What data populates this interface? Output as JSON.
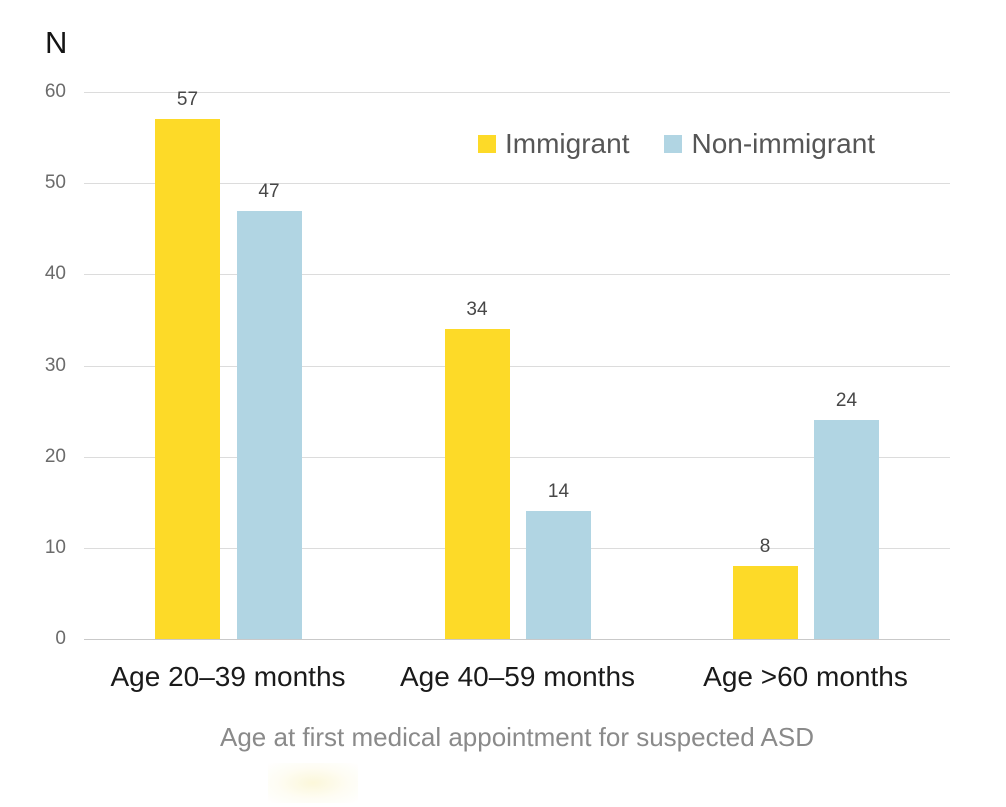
{
  "chart_data": {
    "type": "bar",
    "title": "",
    "xlabel": "Age at first medical appointment for suspected ASD",
    "ylabel": "N",
    "ylim": [
      0,
      60
    ],
    "yticks": [
      0,
      10,
      20,
      30,
      40,
      50,
      60
    ],
    "grid": true,
    "data_labels": true,
    "legend_position": "top-right-inside-plot",
    "categories": [
      "Age 20–39 months",
      "Age 40–59 months",
      "Age >60 months"
    ],
    "series": [
      {
        "name": "Immigrant",
        "color": "#FDDA28",
        "values": [
          57,
          34,
          8
        ]
      },
      {
        "name": "Non-immigrant",
        "color": "#B1D5E3",
        "values": [
          47,
          14,
          24
        ]
      }
    ]
  },
  "colors": {
    "immigrant": "#FDDA28",
    "non_immigrant": "#B1D5E3",
    "gridline": "#dcdcdc",
    "baseline": "#c9c9c9",
    "tick_text": "#6b6b6b",
    "bar_label_text": "#474747",
    "category_text": "#1a1a1a",
    "axis_title_text": "#8a8a8a",
    "legend_text": "#565656"
  }
}
